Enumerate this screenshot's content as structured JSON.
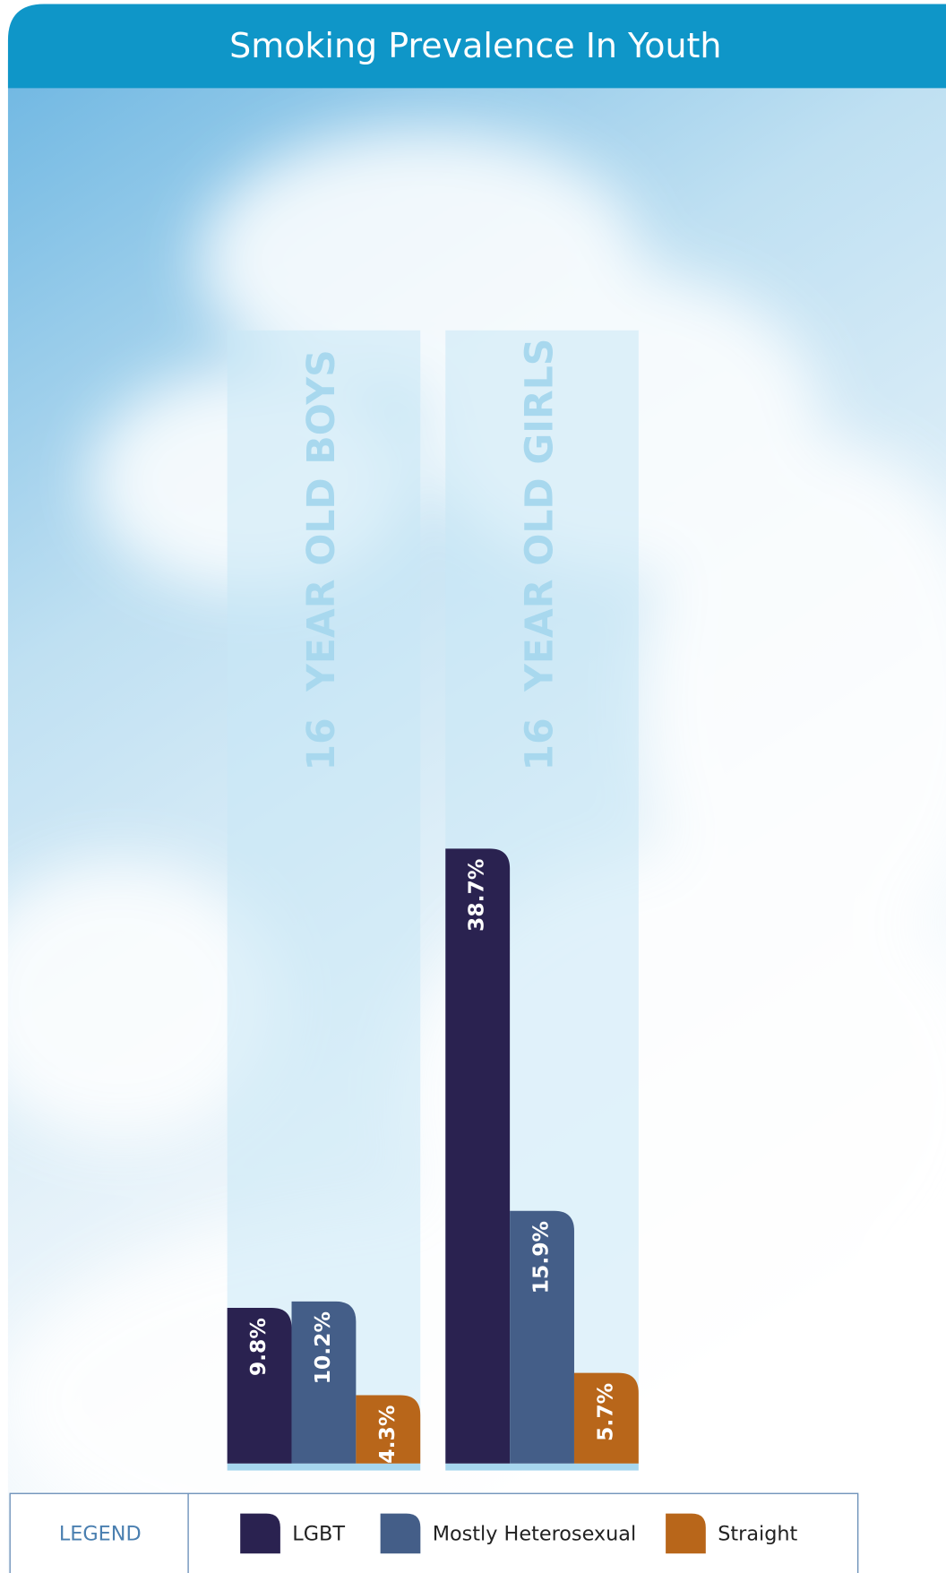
{
  "chart_data": {
    "type": "bar",
    "title": "Smoking Prevalence In Youth",
    "categories": [
      "16  YEAR OLD BOYS",
      "16  YEAR OLD GIRLS"
    ],
    "series": [
      {
        "name": "LGBT",
        "color": "#2a2250",
        "values": [
          9.8,
          38.7
        ],
        "value_labels": [
          "9.8%",
          "38.7%"
        ]
      },
      {
        "name": "Mostly Heterosexual",
        "color": "#445e88",
        "values": [
          10.2,
          15.9
        ],
        "value_labels": [
          "10.2%",
          "15.9%"
        ]
      },
      {
        "name": "Straight",
        "color": "#b8661a",
        "values": [
          4.3,
          5.7
        ],
        "value_labels": [
          "4.3%",
          "5.7%"
        ]
      }
    ],
    "legend_title": "LEGEND"
  }
}
